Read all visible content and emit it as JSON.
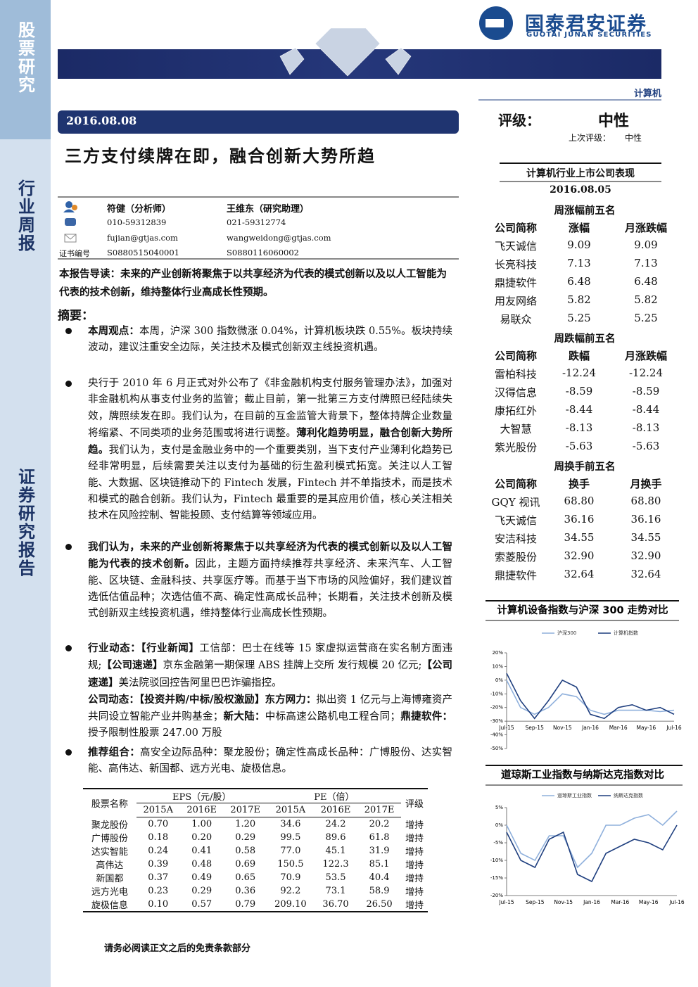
{
  "sidebar": [
    "股票研究",
    "行业周报",
    "证券研究报告"
  ],
  "header": {
    "company": "国泰君安证券",
    "company_en": "GUOTAI JUNAN SECURITIES",
    "sector": "计算机"
  },
  "report": {
    "date": "2016.08.08",
    "title": "三方支付续牌在即，融合创新大势所趋"
  },
  "rating": {
    "label": "评级：",
    "value": "中性",
    "previous_label": "上次评级：",
    "previous_value": "中性"
  },
  "analysts": {
    "rows": [
      [
        "符健（分析师）",
        "王维东（研究助理）"
      ],
      [
        "010-59312839",
        "021-59312774"
      ],
      [
        "fujian@gtjas.com",
        "wangweidong@gtjas.com"
      ]
    ],
    "cert_label": "证书编号",
    "certs": [
      "S0880515040001",
      "S0880116060002"
    ]
  },
  "intro": [
    {
      "strong": "本报告导读："
    },
    {
      "strong": "未来的产业创新将聚焦于以共享经济为代表的模式创新以及以人工智能为代表的技术创新，维持整体行业高成长性预期。"
    }
  ],
  "summary_title": "摘要：",
  "bullets": [
    [
      [
        {
          "strong": "本周观点："
        },
        {
          "text": "本周，沪深 300 指数微涨 0.04%，计算机板块跌 0.55%。板块持续波动，建议注重安全边际，关注技术及模式创新双主线投资机遇。"
        }
      ]
    ],
    [
      [
        {
          "text": "央行于 2010 年 6 月正式对外公布了《非金融机构支付服务管理办法》，加强对非金融机构从事支付业务的监管；截止目前，第一批第三方支付牌照已经陆续失效，牌照续发在即。我们认为，在目前的互金监管大背景下，整体持牌企业数量将缩紧、不同类项的业务范围或将进行调整。"
        },
        {
          "strong": "薄利化趋势明显，融合创新大势所趋。"
        },
        {
          "text": "我们认为，支付是金融业务中的一个重要类别，当下支付产业薄利化趋势已经非常明显，后续需要关注以支付为基础的衍生盈利模式拓宽。关注以人工智能、大数据、区块链推动下的 Fintech 发展，Fintech 并不单指技术，而是技术和模式的融合创新。我们认为，Fintech 最重要的是其应用价值，核心关注相关技术在风险控制、智能投顾、支付结算等领域应用。"
        }
      ]
    ],
    [
      [
        {
          "strong": "我们认为，未来的产业创新将聚焦于以共享经济为代表的模式创新以及以人工智能为代表的技术创新。"
        },
        {
          "text": "因此，主题方面持续推荐共享经济、未来汽车、人工智能、区块链、金融科技、共享医疗等。而基于当下市场的风险偏好，我们建议首选低估值品种；次选估值不高、确定性高成长品种；长期看，关注技术创新及模式创新双主线投资机遇，维持整体行业高成长性预期。"
        }
      ]
    ],
    [
      [
        {
          "strong": "行业动态：【行业新闻】"
        },
        {
          "text": "工信部：巴士在线等 15 家虚拟运营商在实名制方面违规;"
        },
        {
          "strong": "【公司速递】"
        },
        {
          "text": "京东金融第一期保理 ABS 挂牌上交所 发行规模 20 亿元;"
        },
        {
          "strong": "【公司速递】"
        },
        {
          "text": "美法院驳回控告阿里巴巴诈骗指控。"
        }
      ],
      [
        {
          "strong": "公司动态：【投资并购/中标/股权激励】东方网力："
        },
        {
          "text": "拟出资 1 亿元与上海博雍资产共同设立智能产业并购基金；"
        },
        {
          "strong": "新大陆："
        },
        {
          "text": "中标高速公路机电工程合同；"
        },
        {
          "strong": "鼎捷软件："
        },
        {
          "text": "授予限制性股票 247.00 万股"
        }
      ]
    ],
    [
      [
        {
          "strong": "推荐组合："
        },
        {
          "text": "高安全边际品种：聚龙股份；确定性高成长品种：广博股份、达实智能、高伟达、新国都、远方光电、旋极信息。"
        }
      ]
    ]
  ],
  "stock_table": {
    "name_header": "股票名称",
    "eps_header": "EPS（元/股）",
    "pe_header": "PE（倍）",
    "rating_header": "评级",
    "years": [
      "2015A",
      "2016E",
      "2017E",
      "2015A",
      "2016E",
      "2017E"
    ],
    "rows": [
      [
        "聚龙股份",
        "0.70",
        "1.00",
        "1.20",
        "34.6",
        "24.2",
        "20.2",
        "增持"
      ],
      [
        "广博股份",
        "0.18",
        "0.20",
        "0.29",
        "99.5",
        "89.6",
        "61.8",
        "增持"
      ],
      [
        "达实智能",
        "0.24",
        "0.41",
        "0.58",
        "77.0",
        "45.1",
        "31.9",
        "增持"
      ],
      [
        "高伟达",
        "0.39",
        "0.48",
        "0.69",
        "150.5",
        "122.3",
        "85.1",
        "增持"
      ],
      [
        "新国都",
        "0.37",
        "0.49",
        "0.65",
        "70.9",
        "53.5",
        "40.4",
        "增持"
      ],
      [
        "远方光电",
        "0.23",
        "0.29",
        "0.36",
        "92.2",
        "73.1",
        "58.9",
        "增持"
      ],
      [
        "旋极信息",
        "0.10",
        "0.57",
        "0.79",
        "209.10",
        "36.70",
        "26.50",
        "增持"
      ]
    ]
  },
  "performance": {
    "title": "计算机行业上市公司表现",
    "date": "2016.08.05",
    "sections": [
      {
        "title": "周涨幅前五名",
        "headers": [
          "公司简称",
          "涨幅",
          "月涨跌幅"
        ],
        "rows": [
          [
            "飞天诚信",
            "9.09",
            "9.09"
          ],
          [
            "长亮科技",
            "7.13",
            "7.13"
          ],
          [
            "鼎捷软件",
            "6.48",
            "6.48"
          ],
          [
            "用友网络",
            "5.82",
            "5.82"
          ],
          [
            "易联众",
            "5.25",
            "5.25"
          ]
        ]
      },
      {
        "title": "周跌幅前五名",
        "headers": [
          "公司简称",
          "跌幅",
          "月涨跌幅"
        ],
        "rows": [
          [
            "雷柏科技",
            "-12.24",
            "-12.24"
          ],
          [
            "汉得信息",
            "-8.59",
            "-8.59"
          ],
          [
            "康拓红外",
            "-8.44",
            "-8.44"
          ],
          [
            "大智慧",
            "-8.13",
            "-8.13"
          ],
          [
            "紫光股份",
            "-5.63",
            "-5.63"
          ]
        ]
      },
      {
        "title": "周换手前五名",
        "headers": [
          "公司简称",
          "换手",
          "月换手"
        ],
        "rows": [
          [
            "GQY 视讯",
            "68.80",
            "68.80"
          ],
          [
            "飞天诚信",
            "36.16",
            "36.16"
          ],
          [
            "安洁科技",
            "34.55",
            "34.55"
          ],
          [
            "索菱股份",
            "32.90",
            "32.90"
          ],
          [
            "鼎捷软件",
            "32.64",
            "32.64"
          ]
        ]
      }
    ]
  },
  "chart_data": [
    {
      "type": "line",
      "title": "计算机设备指数与沪深 300 走势对比",
      "categories": [
        "Jul-15",
        null,
        "Sep-15",
        null,
        "Nov-15",
        null,
        "Jan-16",
        null,
        "Mar-16",
        null,
        "May-16",
        null,
        "Jul-16"
      ],
      "series": [
        {
          "name": "沪深300",
          "color": "#8fb0dc",
          "values": [
            0,
            -20,
            -25,
            -20,
            -10,
            -12,
            -22,
            -25,
            -22,
            -22,
            -22,
            -23,
            -22
          ]
        },
        {
          "name": "计算机指数",
          "color": "#1f3f7f",
          "values": [
            5,
            -15,
            -28,
            -15,
            0,
            -5,
            -25,
            -28,
            -20,
            -18,
            -22,
            -20,
            -25
          ]
        }
      ],
      "ylim": [
        -50,
        20
      ],
      "yticks": [
        {
          "value": 20,
          "label": "20%"
        },
        {
          "value": 10,
          "label": "10%"
        },
        {
          "value": 0,
          "label": "0%"
        },
        {
          "value": -10,
          "label": "-10%"
        },
        {
          "value": -20,
          "label": "-20%"
        },
        {
          "value": -30,
          "label": "-30%"
        },
        {
          "value": -40,
          "label": "-40%"
        },
        {
          "value": -50,
          "label": "-50%"
        }
      ]
    },
    {
      "type": "line",
      "title": "道琼斯工业指数与纳斯达克指数对比",
      "categories": [
        "Jul-15",
        null,
        "Sep-15",
        null,
        "Nov-15",
        null,
        "Jan-16",
        null,
        "Mar-16",
        null,
        "May-16",
        null,
        "Jul-16"
      ],
      "series": [
        {
          "name": "道琼斯工业指数",
          "color": "#8fb0dc",
          "values": [
            0,
            -8,
            -10,
            -3,
            -3,
            -12,
            -8,
            0,
            0,
            2,
            3,
            0,
            4
          ]
        },
        {
          "name": "纳斯达克指数",
          "color": "#1f3f7f",
          "values": [
            -2,
            -10,
            -12,
            -4,
            -2,
            -14,
            -16,
            -8,
            -6,
            -4,
            -5,
            -7,
            0
          ]
        }
      ],
      "ylim": [
        -20,
        5
      ],
      "yticks": [
        {
          "value": 5,
          "label": "5%"
        },
        {
          "value": 0,
          "label": "0%"
        },
        {
          "value": -5,
          "label": "-5%"
        },
        {
          "value": -10,
          "label": "-10%"
        },
        {
          "value": -15,
          "label": "-15%"
        },
        {
          "value": -20,
          "label": "-20%"
        }
      ]
    }
  ],
  "footer": "请务必阅读正文之后的免责条款部分"
}
